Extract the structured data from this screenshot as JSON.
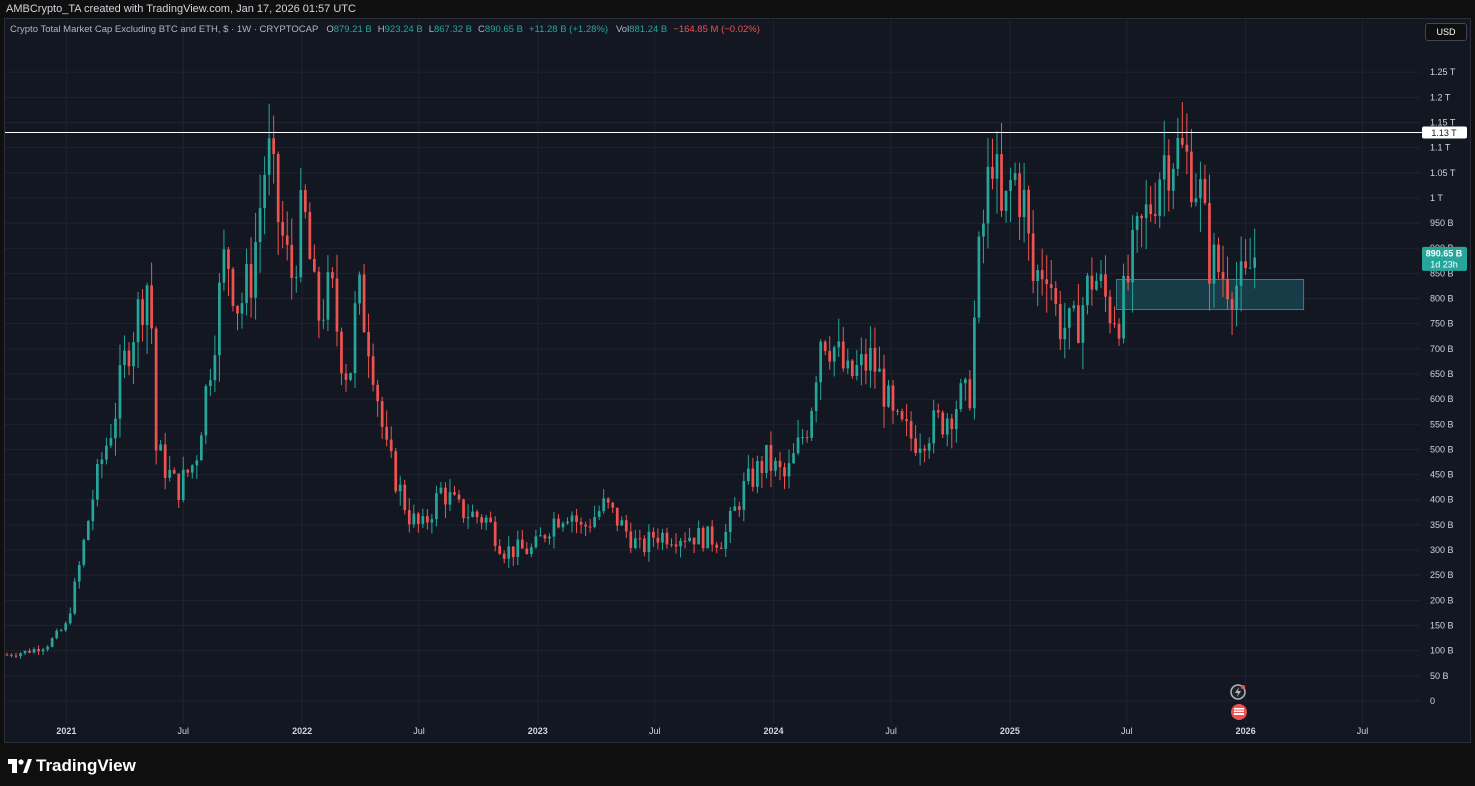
{
  "attribution": "AMBCrypto_TA created with TradingView.com, Jan 17, 2026 01:57 UTC",
  "brand": "TradingView",
  "currency_button": "USD",
  "legend": {
    "symbol": "Crypto Total Market Cap Excluding BTC and ETH, $ · 1W · CRYPTOCAP",
    "o_label": "O",
    "o_value": "879.21 B",
    "h_label": "H",
    "h_value": "923.24 B",
    "l_label": "L",
    "l_value": "867.32 B",
    "c_label": "C",
    "c_value": "890.65 B",
    "change": "+11.28 B (+1.28%)",
    "vol_label": "Vol",
    "vol_value": "881.24 B",
    "vol_change": "−164.85 M (−0.02%)"
  },
  "colors": {
    "up": "#26a69a",
    "down": "#ef5350",
    "grid": "#1f2330",
    "bg": "#131722",
    "zone": "#1a4a55",
    "level": "#ffffff"
  },
  "chart_data": {
    "type": "candlestick",
    "title": "Crypto Total Market Cap Excluding BTC and ETH",
    "interval": "1W",
    "y_unit": "B",
    "ylim": [
      -30,
      1310
    ],
    "y_ticks": [
      {
        "v": 1250,
        "t": "1.25 T"
      },
      {
        "v": 1200,
        "t": "1.2 T"
      },
      {
        "v": 1150,
        "t": "1.15 T"
      },
      {
        "v": 1100,
        "t": "1.1 T"
      },
      {
        "v": 1050,
        "t": "1.05 T"
      },
      {
        "v": 1000,
        "t": "1 T"
      },
      {
        "v": 950,
        "t": "950 B"
      },
      {
        "v": 900,
        "t": "900 B"
      },
      {
        "v": 850,
        "t": "850 B"
      },
      {
        "v": 800,
        "t": "800 B"
      },
      {
        "v": 750,
        "t": "750 B"
      },
      {
        "v": 700,
        "t": "700 B"
      },
      {
        "v": 650,
        "t": "650 B"
      },
      {
        "v": 600,
        "t": "600 B"
      },
      {
        "v": 550,
        "t": "550 B"
      },
      {
        "v": 500,
        "t": "500 B"
      },
      {
        "v": 450,
        "t": "450 B"
      },
      {
        "v": 400,
        "t": "400 B"
      },
      {
        "v": 350,
        "t": "350 B"
      },
      {
        "v": 300,
        "t": "300 B"
      },
      {
        "v": 250,
        "t": "250 B"
      },
      {
        "v": 200,
        "t": "200 B"
      },
      {
        "v": 150,
        "t": "150 B"
      },
      {
        "v": 100,
        "t": "100 B"
      },
      {
        "v": 50,
        "t": "50 B"
      },
      {
        "v": 0,
        "t": "0"
      }
    ],
    "x_ticks": [
      {
        "d": "2021-01-01",
        "t": "2021",
        "bold": true
      },
      {
        "d": "2021-07-01",
        "t": "Jul",
        "bold": false
      },
      {
        "d": "2022-01-01",
        "t": "2022",
        "bold": true
      },
      {
        "d": "2022-07-01",
        "t": "Jul",
        "bold": false
      },
      {
        "d": "2023-01-01",
        "t": "2023",
        "bold": true
      },
      {
        "d": "2023-07-01",
        "t": "Jul",
        "bold": false
      },
      {
        "d": "2024-01-01",
        "t": "2024",
        "bold": true
      },
      {
        "d": "2024-07-01",
        "t": "Jul",
        "bold": false
      },
      {
        "d": "2025-01-01",
        "t": "2025",
        "bold": true
      },
      {
        "d": "2025-07-01",
        "t": "Jul",
        "bold": false
      },
      {
        "d": "2026-01-01",
        "t": "2026",
        "bold": true
      },
      {
        "d": "2026-07-01",
        "t": "Jul",
        "bold": false
      }
    ],
    "xlim": [
      "2020-09-28",
      "2026-09-28"
    ],
    "anchors": [
      [
        "2020-10-01",
        92
      ],
      [
        "2020-11-01",
        98
      ],
      [
        "2020-12-01",
        110
      ],
      [
        "2021-01-01",
        150
      ],
      [
        "2021-01-20",
        260
      ],
      [
        "2021-02-10",
        400
      ],
      [
        "2021-02-25",
        480
      ],
      [
        "2021-03-15",
        560
      ],
      [
        "2021-04-05",
        700
      ],
      [
        "2021-05-10",
        850
      ],
      [
        "2021-05-20",
        500
      ],
      [
        "2021-06-22",
        420
      ],
      [
        "2021-07-20",
        480
      ],
      [
        "2021-08-15",
        700
      ],
      [
        "2021-09-05",
        900
      ],
      [
        "2021-09-25",
        780
      ],
      [
        "2021-10-15",
        850
      ],
      [
        "2021-11-08",
        1100
      ],
      [
        "2021-11-25",
        960
      ],
      [
        "2021-12-15",
        840
      ],
      [
        "2022-01-03",
        980
      ],
      [
        "2022-01-24",
        760
      ],
      [
        "2022-02-15",
        820
      ],
      [
        "2022-03-01",
        700
      ],
      [
        "2022-03-15",
        640
      ],
      [
        "2022-03-28",
        820
      ],
      [
        "2022-04-18",
        700
      ],
      [
        "2022-05-10",
        500
      ],
      [
        "2022-06-15",
        370
      ],
      [
        "2022-07-05",
        340
      ],
      [
        "2022-08-05",
        420
      ],
      [
        "2022-09-01",
        380
      ],
      [
        "2022-10-15",
        360
      ],
      [
        "2022-11-09",
        300
      ],
      [
        "2022-12-25",
        300
      ],
      [
        "2023-01-25",
        360
      ],
      [
        "2023-02-20",
        380
      ],
      [
        "2023-03-10",
        340
      ],
      [
        "2023-04-15",
        390
      ],
      [
        "2023-06-10",
        300
      ],
      [
        "2023-06-30",
        330
      ],
      [
        "2023-08-20",
        330
      ],
      [
        "2023-10-15",
        320
      ],
      [
        "2023-11-15",
        420
      ],
      [
        "2023-12-20",
        480
      ],
      [
        "2024-01-20",
        440
      ],
      [
        "2024-02-25",
        560
      ],
      [
        "2024-03-15",
        740
      ],
      [
        "2024-04-05",
        700
      ],
      [
        "2024-04-25",
        640
      ],
      [
        "2024-06-01",
        680
      ],
      [
        "2024-06-20",
        620
      ],
      [
        "2024-07-05",
        550
      ],
      [
        "2024-08-05",
        520
      ],
      [
        "2024-09-20",
        560
      ],
      [
        "2024-10-15",
        600
      ],
      [
        "2024-10-30",
        600
      ],
      [
        "2024-11-12",
        850
      ],
      [
        "2024-12-05",
        1100
      ],
      [
        "2024-12-20",
        940
      ],
      [
        "2025-01-06",
        1050
      ],
      [
        "2025-01-25",
        980
      ],
      [
        "2025-02-04",
        830
      ],
      [
        "2025-02-28",
        880
      ],
      [
        "2025-03-15",
        760
      ],
      [
        "2025-04-08",
        730
      ],
      [
        "2025-05-10",
        850
      ],
      [
        "2025-06-05",
        780
      ],
      [
        "2025-06-22",
        770
      ],
      [
        "2025-07-14",
        900
      ],
      [
        "2025-08-10",
        1000
      ],
      [
        "2025-08-25",
        1080
      ],
      [
        "2025-09-15",
        1100
      ],
      [
        "2025-10-10",
        1060
      ],
      [
        "2025-10-24",
        1000
      ],
      [
        "2025-11-05",
        880
      ],
      [
        "2025-11-25",
        850
      ],
      [
        "2025-12-15",
        830
      ],
      [
        "2025-12-31",
        820
      ],
      [
        "2026-01-12",
        880
      ],
      [
        "2026-01-17",
        890.65
      ]
    ],
    "last_value": {
      "value": "890.65 B",
      "countdown": "1d 23h"
    },
    "levels": [
      {
        "value": 1130,
        "label": "1.13 T"
      }
    ],
    "zones": [
      {
        "from": "2025-06-15",
        "to": "2026-04-01",
        "low": 778,
        "high": 838
      }
    ]
  }
}
